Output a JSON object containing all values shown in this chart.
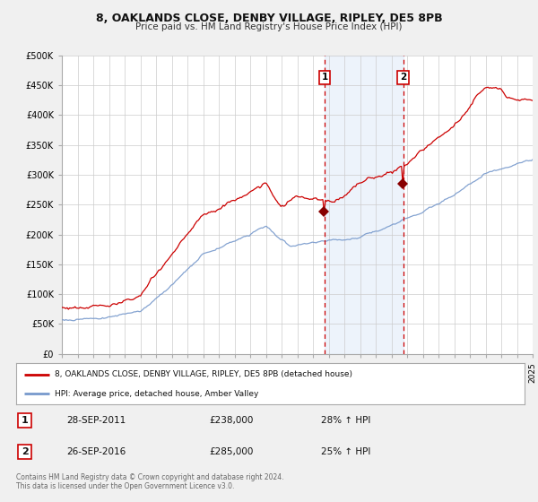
{
  "title": "8, OAKLANDS CLOSE, DENBY VILLAGE, RIPLEY, DE5 8PB",
  "subtitle": "Price paid vs. HM Land Registry's House Price Index (HPI)",
  "legend_line1": "8, OAKLANDS CLOSE, DENBY VILLAGE, RIPLEY, DE5 8PB (detached house)",
  "legend_line2": "HPI: Average price, detached house, Amber Valley",
  "transaction1_date": "28-SEP-2011",
  "transaction1_price": "£238,000",
  "transaction1_hpi": "28% ↑ HPI",
  "transaction2_date": "26-SEP-2016",
  "transaction2_price": "£285,000",
  "transaction2_hpi": "25% ↑ HPI",
  "footer": "Contains HM Land Registry data © Crown copyright and database right 2024.\nThis data is licensed under the Open Government Licence v3.0.",
  "red_line_color": "#cc0000",
  "blue_line_color": "#7799cc",
  "background_color": "#f0f0f0",
  "plot_bg_color": "#ffffff",
  "grid_color": "#cccccc",
  "highlight_bg_color": "#ccddf5",
  "vline_color": "#cc0000",
  "marker_color": "#880000",
  "sale1_year": 2011.75,
  "sale2_year": 2016.75,
  "sale1_price": 238000,
  "sale2_price": 285000,
  "ylim_max": 500000,
  "ylim_min": 0,
  "xmin": 1995,
  "xmax": 2025
}
